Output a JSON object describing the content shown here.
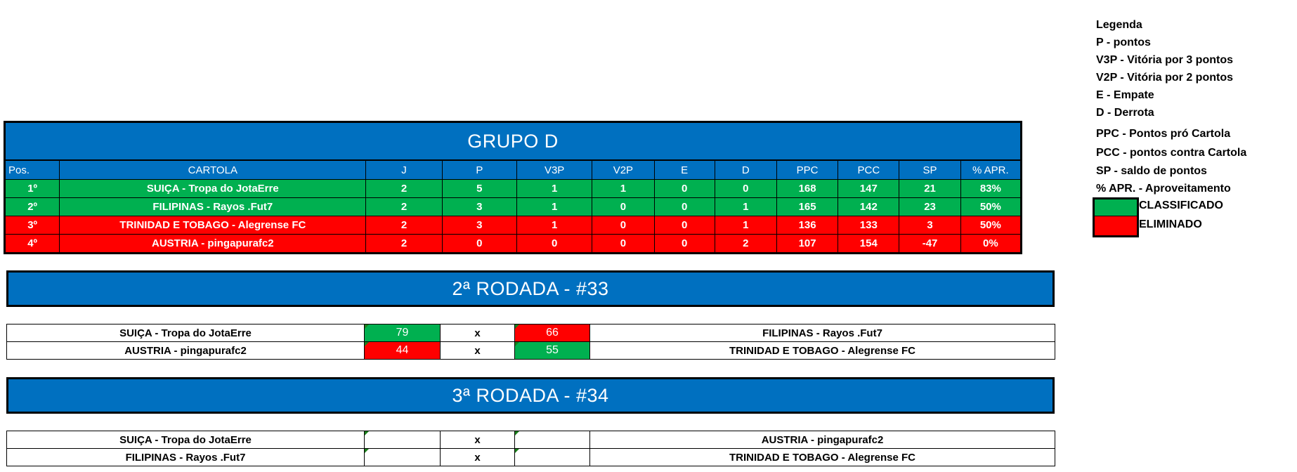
{
  "group": {
    "title": "GRUPO D",
    "headers": [
      "Pos.",
      "CARTOLA",
      "J",
      "P",
      "V3P",
      "V2P",
      "E",
      "D",
      "PPC",
      "PCC",
      "SP",
      "% APR."
    ],
    "rows": [
      {
        "status": "classificado",
        "cells": [
          "1º",
          "SUIÇA - Tropa do JotaErre",
          "2",
          "5",
          "1",
          "1",
          "0",
          "0",
          "168",
          "147",
          "21",
          "83%"
        ]
      },
      {
        "status": "classificado",
        "cells": [
          "2º",
          "FILIPINAS - Rayos .Fut7",
          "2",
          "3",
          "1",
          "0",
          "0",
          "1",
          "165",
          "142",
          "23",
          "50%"
        ]
      },
      {
        "status": "eliminado",
        "cells": [
          "3º",
          "TRINIDAD E TOBAGO - Alegrense FC",
          "2",
          "3",
          "1",
          "0",
          "0",
          "1",
          "136",
          "133",
          "3",
          "50%"
        ]
      },
      {
        "status": "eliminado",
        "cells": [
          "4º",
          "AUSTRIA - pingapurafc2",
          "2",
          "0",
          "0",
          "0",
          "0",
          "2",
          "107",
          "154",
          "-47",
          "0%"
        ]
      }
    ]
  },
  "rounds": [
    {
      "title": "2ª RODADA - #33",
      "matches": [
        {
          "home": "SUIÇA - Tropa do JotaErre",
          "home_score": "79",
          "home_result": "win",
          "sep": "x",
          "away_score": "66",
          "away_result": "loss",
          "away": "FILIPINAS - Rayos .Fut7"
        },
        {
          "home": "AUSTRIA - pingapurafc2",
          "home_score": "44",
          "home_result": "loss",
          "sep": "x",
          "away_score": "55",
          "away_result": "win",
          "away": "TRINIDAD E TOBAGO - Alegrense FC"
        }
      ]
    },
    {
      "title": "3ª RODADA - #34",
      "matches": [
        {
          "home": "SUIÇA - Tropa do JotaErre",
          "home_score": "",
          "home_result": "",
          "sep": "x",
          "away_score": "",
          "away_result": "",
          "away": "AUSTRIA - pingapurafc2"
        },
        {
          "home": "FILIPINAS - Rayos .Fut7",
          "home_score": "",
          "home_result": "",
          "sep": "x",
          "away_score": "",
          "away_result": "",
          "away": "TRINIDAD E TOBAGO - Alegrense FC"
        }
      ]
    }
  ],
  "legend": {
    "title": "Legenda",
    "items": [
      "P - pontos",
      "V3P - Vitória por 3 pontos",
      "V2P - Vitória por 2 pontos",
      "E - Empate",
      "D - Derrota",
      "PPC - Pontos pró Cartola",
      "PCC - pontos contra Cartola",
      "SP - saldo de pontos",
      "% APR. - Aproveitamento"
    ],
    "classificado": "CLASSIFICADO",
    "eliminado": "ELIMINADO"
  },
  "colors": {
    "header_blue": "#0070C0",
    "classificado": "#00B050",
    "eliminado": "#FF0000"
  }
}
